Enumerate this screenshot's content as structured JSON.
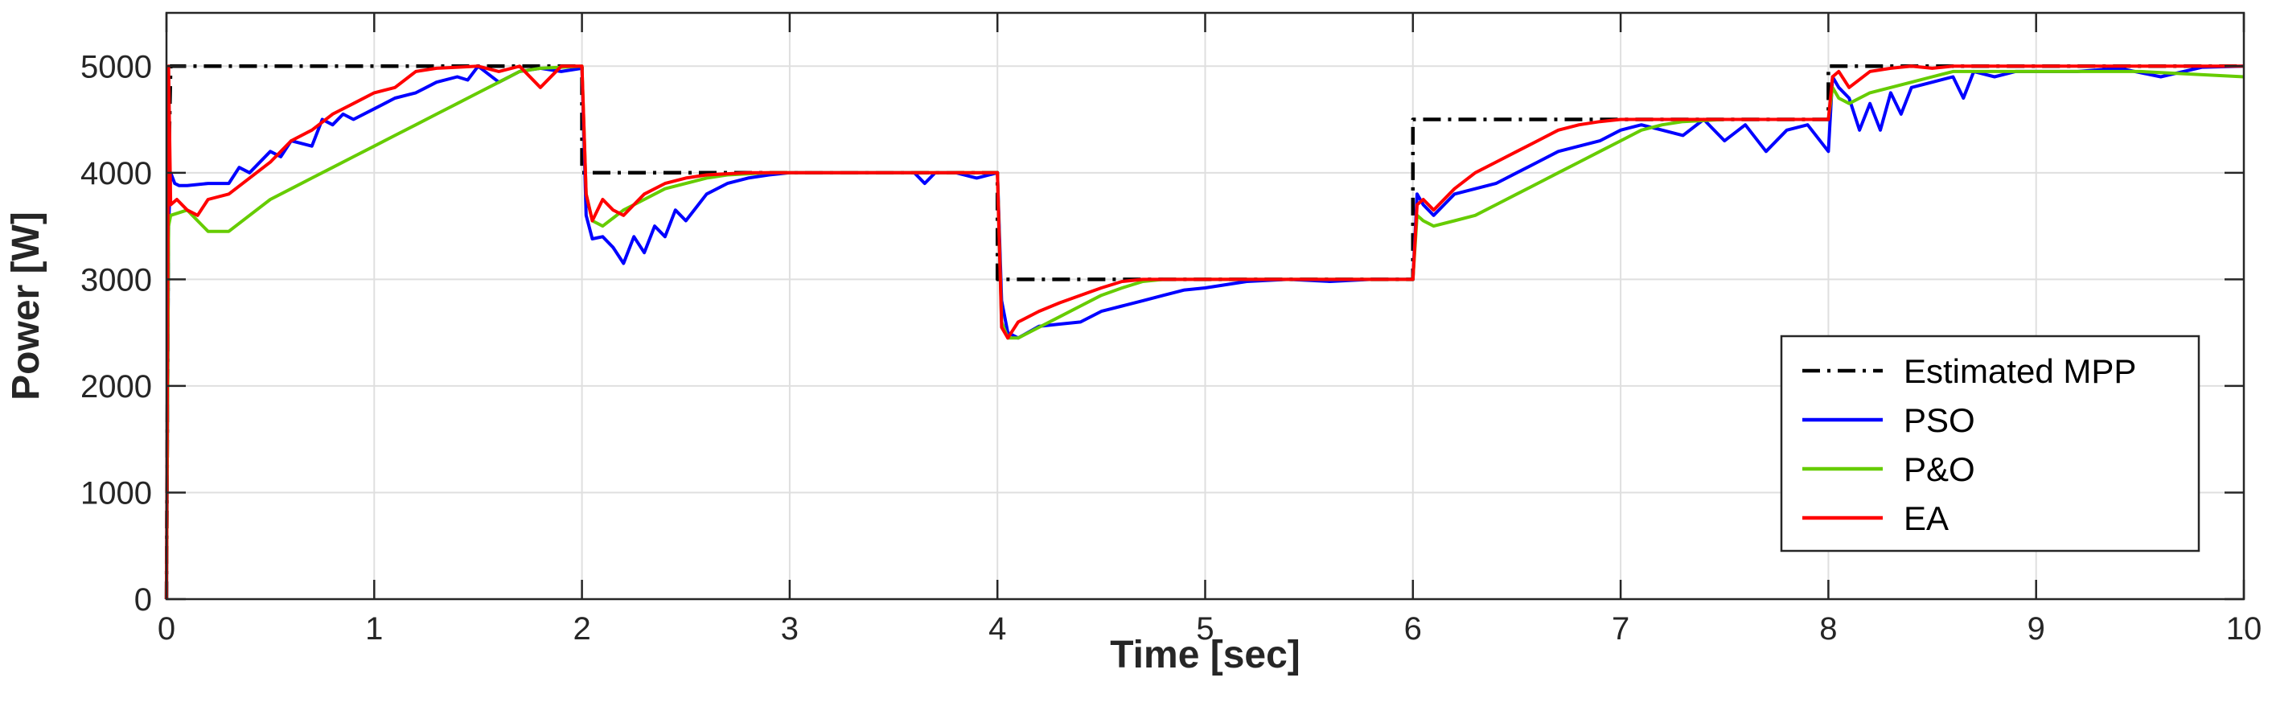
{
  "chart_data": {
    "type": "line",
    "title": "",
    "xlabel": "Time [sec]",
    "ylabel": "Power [W]",
    "xlim": [
      0,
      10
    ],
    "ylim": [
      0,
      5500
    ],
    "xticks": [
      0,
      1,
      2,
      3,
      4,
      5,
      6,
      7,
      8,
      9,
      10
    ],
    "yticks": [
      0,
      1000,
      2000,
      3000,
      4000,
      5000
    ],
    "grid": true,
    "legend_position": "bottom-right",
    "series": [
      {
        "name": "Estimated MPP",
        "color": "#000000",
        "style": "dashdot",
        "x": [
          0,
          0.01,
          0.02,
          2.0,
          2.0,
          4.0,
          4.0,
          6.0,
          6.0,
          8.0,
          8.0,
          10.0
        ],
        "y": [
          0,
          4000,
          5000,
          5000,
          4000,
          4000,
          3000,
          3000,
          4500,
          4500,
          5000,
          5000
        ]
      },
      {
        "name": "PSO",
        "color": "#0000ff",
        "style": "solid",
        "x": [
          0,
          0.01,
          0.02,
          0.04,
          0.06,
          0.1,
          0.2,
          0.3,
          0.35,
          0.4,
          0.5,
          0.55,
          0.6,
          0.7,
          0.75,
          0.8,
          0.85,
          0.9,
          1.0,
          1.05,
          1.1,
          1.2,
          1.25,
          1.3,
          1.4,
          1.45,
          1.5,
          1.6,
          1.7,
          1.8,
          1.9,
          2.0,
          2.02,
          2.05,
          2.1,
          2.15,
          2.2,
          2.25,
          2.3,
          2.35,
          2.4,
          2.45,
          2.5,
          2.6,
          2.7,
          2.8,
          2.9,
          3.0,
          3.2,
          3.4,
          3.6,
          3.65,
          3.7,
          3.8,
          3.9,
          4.0,
          4.02,
          4.05,
          4.1,
          4.2,
          4.3,
          4.4,
          4.5,
          4.6,
          4.7,
          4.8,
          4.9,
          5.0,
          5.1,
          5.2,
          5.4,
          5.6,
          5.8,
          6.0,
          6.02,
          6.05,
          6.1,
          6.2,
          6.3,
          6.4,
          6.5,
          6.6,
          6.7,
          6.8,
          6.9,
          7.0,
          7.1,
          7.2,
          7.3,
          7.4,
          7.5,
          7.6,
          7.7,
          7.8,
          7.9,
          8.0,
          8.02,
          8.05,
          8.1,
          8.15,
          8.2,
          8.25,
          8.3,
          8.35,
          8.4,
          8.5,
          8.6,
          8.65,
          8.7,
          8.8,
          8.9,
          9.0,
          9.2,
          9.4,
          9.6,
          9.8,
          10.0
        ],
        "y": [
          0,
          3500,
          4000,
          3900,
          3880,
          3880,
          3900,
          3900,
          4050,
          4000,
          4200,
          4150,
          4300,
          4250,
          4500,
          4450,
          4550,
          4500,
          4600,
          4650,
          4700,
          4750,
          4800,
          4850,
          4900,
          4870,
          5000,
          4850,
          4950,
          4980,
          4950,
          4980,
          3600,
          3380,
          3400,
          3300,
          3150,
          3400,
          3250,
          3500,
          3400,
          3650,
          3550,
          3800,
          3900,
          3950,
          3980,
          4000,
          4000,
          4000,
          4000,
          3900,
          4000,
          4000,
          3950,
          4000,
          2800,
          2500,
          2450,
          2560,
          2580,
          2600,
          2700,
          2750,
          2800,
          2850,
          2900,
          2920,
          2950,
          2980,
          3000,
          2980,
          3000,
          3000,
          3800,
          3700,
          3600,
          3800,
          3850,
          3900,
          4000,
          4100,
          4200,
          4250,
          4300,
          4400,
          4450,
          4400,
          4350,
          4500,
          4300,
          4450,
          4200,
          4400,
          4450,
          4200,
          4900,
          4800,
          4700,
          4400,
          4650,
          4400,
          4750,
          4550,
          4800,
          4850,
          4900,
          4700,
          4950,
          4900,
          4950,
          4950,
          4950,
          4980,
          4900,
          4990,
          5000
        ]
      },
      {
        "name": "P&O",
        "color": "#66cc00",
        "style": "solid",
        "x": [
          0,
          0.01,
          0.02,
          0.1,
          0.15,
          0.2,
          0.3,
          0.4,
          0.5,
          0.6,
          0.7,
          0.8,
          0.9,
          1.0,
          1.1,
          1.2,
          1.3,
          1.4,
          1.5,
          1.6,
          1.7,
          1.8,
          1.9,
          2.0,
          2.02,
          2.05,
          2.1,
          2.2,
          2.3,
          2.4,
          2.5,
          2.6,
          2.7,
          2.8,
          2.9,
          3.0,
          3.5,
          4.0,
          4.02,
          4.05,
          4.1,
          4.2,
          4.3,
          4.4,
          4.5,
          4.6,
          4.7,
          4.8,
          5.0,
          5.5,
          6.0,
          6.02,
          6.05,
          6.1,
          6.2,
          6.3,
          6.4,
          6.5,
          6.6,
          6.7,
          6.8,
          6.9,
          7.0,
          7.1,
          7.2,
          7.3,
          7.4,
          7.5,
          8.0,
          8.02,
          8.05,
          8.1,
          8.2,
          8.3,
          8.4,
          8.5,
          8.6,
          8.8,
          9.0,
          9.5,
          10.0
        ],
        "y": [
          0,
          3500,
          3600,
          3650,
          3550,
          3450,
          3450,
          3600,
          3750,
          3850,
          3950,
          4050,
          4150,
          4250,
          4350,
          4450,
          4550,
          4650,
          4750,
          4850,
          4950,
          4980,
          4990,
          5000,
          3800,
          3550,
          3500,
          3650,
          3750,
          3850,
          3900,
          3950,
          3980,
          3990,
          4000,
          4000,
          4000,
          4000,
          2600,
          2450,
          2450,
          2550,
          2650,
          2750,
          2850,
          2920,
          2980,
          3000,
          3000,
          3000,
          3000,
          3600,
          3550,
          3500,
          3550,
          3600,
          3700,
          3800,
          3900,
          4000,
          4100,
          4200,
          4300,
          4400,
          4450,
          4480,
          4490,
          4500,
          4500,
          4800,
          4700,
          4650,
          4750,
          4800,
          4850,
          4900,
          4950,
          4950,
          4950,
          4950,
          4900
        ]
      },
      {
        "name": "EA",
        "color": "#ff0000",
        "style": "solid",
        "x": [
          0,
          0.01,
          0.02,
          0.05,
          0.1,
          0.15,
          0.2,
          0.3,
          0.4,
          0.5,
          0.6,
          0.7,
          0.8,
          0.9,
          1.0,
          1.1,
          1.2,
          1.3,
          1.4,
          1.5,
          1.6,
          1.7,
          1.8,
          1.9,
          2.0,
          2.02,
          2.05,
          2.1,
          2.15,
          2.2,
          2.3,
          2.4,
          2.5,
          2.6,
          2.7,
          2.8,
          3.0,
          3.5,
          4.0,
          4.02,
          4.05,
          4.1,
          4.2,
          4.3,
          4.4,
          4.5,
          4.6,
          4.7,
          4.8,
          5.0,
          5.5,
          6.0,
          6.02,
          6.05,
          6.1,
          6.2,
          6.3,
          6.4,
          6.5,
          6.6,
          6.7,
          6.8,
          6.9,
          7.0,
          7.2,
          7.5,
          8.0,
          8.02,
          8.05,
          8.1,
          8.2,
          8.3,
          8.4,
          8.5,
          8.6,
          9.0,
          10.0
        ],
        "y": [
          0,
          5000,
          3700,
          3750,
          3650,
          3600,
          3750,
          3800,
          3950,
          4100,
          4300,
          4400,
          4550,
          4650,
          4750,
          4800,
          4950,
          4980,
          4990,
          5000,
          4950,
          5000,
          4800,
          5000,
          5000,
          3800,
          3550,
          3750,
          3650,
          3600,
          3800,
          3900,
          3950,
          3980,
          3990,
          4000,
          4000,
          4000,
          4000,
          2550,
          2450,
          2600,
          2700,
          2780,
          2850,
          2920,
          2980,
          3000,
          3000,
          3000,
          3000,
          3000,
          3700,
          3750,
          3650,
          3850,
          4000,
          4100,
          4200,
          4300,
          4400,
          4450,
          4480,
          4500,
          4500,
          4500,
          4500,
          4900,
          4950,
          4800,
          4950,
          4980,
          5000,
          4980,
          5000,
          5000,
          5000
        ]
      }
    ]
  }
}
